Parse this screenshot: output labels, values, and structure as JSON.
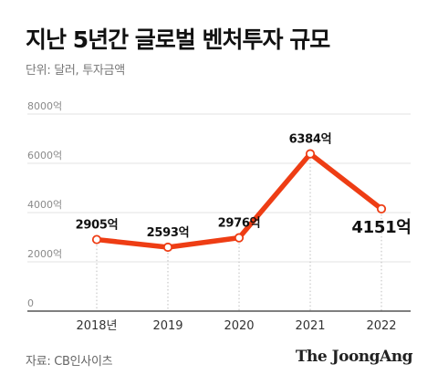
{
  "title": "지난 5년간 글로벌 벤처투자 규모",
  "subtitle": "단위: 달러, 투자금액",
  "source": "자료: CB인사이츠",
  "brand": "The JoongAng",
  "chart_data": {
    "type": "line",
    "categories": [
      "2018년",
      "2019",
      "2020",
      "2021",
      "2022"
    ],
    "series": [
      {
        "values": [
          2905,
          2593,
          2976,
          6384,
          4151
        ]
      }
    ],
    "data_labels": [
      "2905억",
      "2593억",
      "2976억",
      "6384억",
      "4151억"
    ],
    "yticks": [
      {
        "value": 0,
        "label": "0"
      },
      {
        "value": 2000,
        "label": "2000억"
      },
      {
        "value": 4000,
        "label": "4000억"
      },
      {
        "value": 6000,
        "label": "6000억"
      },
      {
        "value": 8000,
        "label": "8000억"
      }
    ],
    "ylim": [
      0,
      8000
    ],
    "grid": true,
    "line_color": "#ee3d14",
    "marker_fill": "#ffffff",
    "highlight_last": true
  }
}
